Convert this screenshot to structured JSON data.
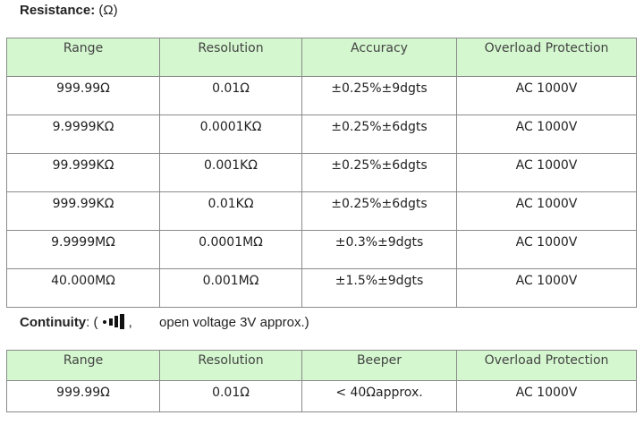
{
  "resistance": {
    "label": "Resistance:",
    "unit": "(Ω)",
    "table": {
      "header": [
        "Range",
        "Resolution",
        "Accuracy",
        "Overload Protection"
      ],
      "rows": [
        [
          "999.99Ω",
          "0.01Ω",
          "±0.25%±9dgts",
          "AC 1000V"
        ],
        [
          "9.9999KΩ",
          "0.0001KΩ",
          "±0.25%±6dgts",
          "AC 1000V"
        ],
        [
          "99.999KΩ",
          "0.001KΩ",
          "±0.25%±6dgts",
          "AC 1000V"
        ],
        [
          "999.99KΩ",
          "0.01KΩ",
          "±0.25%±6dgts",
          "AC 1000V"
        ],
        [
          "9.9999MΩ",
          "0.0001MΩ",
          "±0.3%±9dgts",
          "AC 1000V"
        ],
        [
          "40.000MΩ",
          "0.001MΩ",
          "±1.5%±9dgts",
          "AC 1000V"
        ]
      ]
    }
  },
  "continuity": {
    "label": "Continuity",
    "prefix": ": (",
    "separator": ",",
    "note": "open voltage 3V approx.)",
    "table": {
      "header": [
        "Range",
        "Resolution",
        "Beeper",
        "Overload Protection"
      ],
      "rows": [
        [
          "999.99Ω",
          "0.01Ω",
          "< 40Ωapprox.",
          "AC 1000V"
        ]
      ]
    }
  }
}
